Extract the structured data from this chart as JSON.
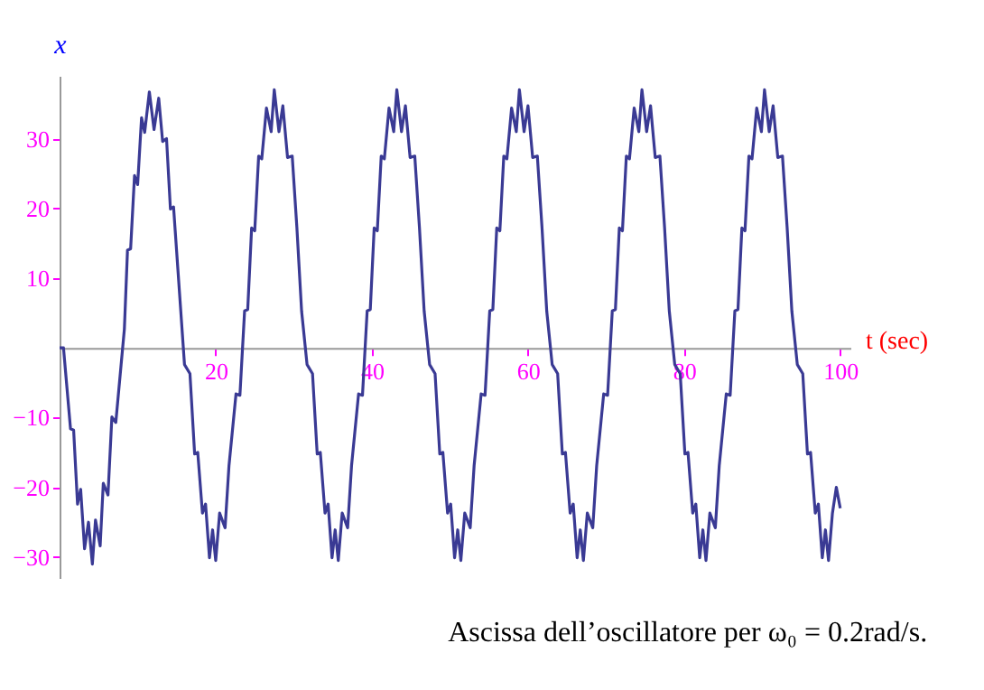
{
  "chart_data": {
    "type": "line",
    "xlabel": "t (sec)",
    "ylabel": "x",
    "annotations": [
      "Ascissa dell’oscillatore per ω₀ = 0.2rad/s."
    ],
    "xlim": [
      0,
      101.3
    ],
    "xticks": [
      20,
      40,
      60,
      80,
      100
    ],
    "ylim": [
      -33,
      39
    ],
    "yticks": [
      -30,
      -20,
      -10,
      10,
      20,
      30
    ],
    "grid": false,
    "marker": "none",
    "line_style": "solid",
    "series": [
      {
        "color": "#3a3a94",
        "x": [
          0,
          0.5,
          1.4,
          1.8,
          2.3,
          2.7,
          3.2,
          3.7,
          4.2,
          4.6,
          5.2,
          5.6,
          6.2,
          6.7,
          7.2,
          8.3,
          8.7,
          9.1,
          9.6,
          10,
          10.5,
          10.9,
          11.5,
          12.1,
          12.7,
          13.2,
          13.7,
          14.2,
          14.6,
          16.0,
          16.7,
          17.3,
          17.7,
          18.3,
          18.7,
          19.2,
          19.6,
          20.0,
          20.5,
          21.2,
          21.7,
          22.6,
          23.1,
          23.7,
          24.1,
          24.6,
          25.0,
          25.5,
          25.9,
          26.5,
          27.1,
          27.5,
          28.1,
          28.6,
          29.2,
          29.8,
          30.4,
          31.0,
          31.7,
          32.4,
          33.0,
          33.4,
          34.0,
          34.4,
          34.9,
          35.3,
          35.7,
          36.2,
          36.9,
          37.4,
          38.3,
          38.8,
          39.4,
          39.8,
          40.3,
          40.7,
          41.2,
          41.6,
          42.2,
          42.8,
          43.2,
          43.8,
          44.3,
          44.9,
          45.5,
          46.1,
          46.7,
          47.4,
          48.1,
          48.7,
          49.1,
          49.7,
          50.1,
          50.6,
          51.0,
          51.4,
          51.9,
          52.6,
          53.1,
          54.0,
          54.5,
          55.1,
          55.5,
          56.0,
          56.4,
          56.9,
          57.3,
          57.9,
          58.5,
          58.9,
          59.5,
          60.0,
          60.6,
          61.2,
          61.8,
          62.4,
          63.1,
          63.8,
          64.4,
          64.8,
          65.4,
          65.8,
          66.3,
          66.7,
          67.1,
          67.6,
          68.3,
          68.8,
          69.7,
          70.2,
          70.8,
          71.2,
          71.7,
          72.1,
          72.6,
          73.0,
          73.6,
          74.2,
          74.6,
          75.2,
          75.7,
          76.3,
          76.9,
          77.5,
          78.1,
          78.8,
          79.5,
          80.1,
          80.5,
          81.1,
          81.5,
          82.0,
          82.4,
          82.8,
          83.3,
          84.0,
          84.5,
          85.4,
          85.9,
          86.5,
          86.9,
          87.4,
          87.8,
          88.3,
          88.7,
          89.3,
          89.9,
          90.3,
          90.9,
          91.4,
          92.0,
          92.6,
          93.2,
          93.8,
          94.5,
          95.2,
          95.8,
          96.2,
          96.8,
          97.2,
          97.7,
          98.1,
          98.5,
          99.0,
          99.5,
          100
        ],
        "values": [
          0,
          0,
          -11.6,
          -11.8,
          -22.4,
          -20.3,
          -28.8,
          -25,
          -31,
          -24.7,
          -28.4,
          -19.4,
          -21.1,
          -9.9,
          -10.7,
          2.7,
          14,
          14.2,
          24.7,
          23.4,
          33,
          30.9,
          36.7,
          31.3,
          35.8,
          29.6,
          30,
          19.9,
          20.2,
          -2.4,
          -3.7,
          -15.2,
          -15,
          -23.7,
          -22.4,
          -30.1,
          -26.1,
          -30.5,
          -23.7,
          -25.8,
          -16.9,
          -6.6,
          -6.8,
          5.3,
          5.5,
          17.2,
          16.8,
          27.5,
          27.1,
          34.4,
          31,
          37,
          31,
          34.7,
          27.3,
          27.5,
          17.2,
          5.3,
          -2.4,
          -3.7,
          -15.2,
          -15,
          -23.7,
          -22.4,
          -30.1,
          -26.1,
          -30.5,
          -23.7,
          -25.8,
          -16.9,
          -6.6,
          -6.8,
          5.3,
          5.5,
          17.2,
          16.8,
          27.5,
          27.1,
          34.4,
          31,
          37,
          31,
          34.7,
          27.3,
          27.5,
          17.2,
          5.3,
          -2.4,
          -3.7,
          -15.2,
          -15,
          -23.7,
          -22.4,
          -30.1,
          -26.1,
          -30.5,
          -23.7,
          -25.8,
          -16.9,
          -6.6,
          -6.8,
          5.3,
          5.5,
          17.2,
          16.8,
          27.5,
          27.1,
          34.4,
          31,
          37,
          31,
          34.7,
          27.3,
          27.5,
          17.2,
          5.3,
          -2.4,
          -3.7,
          -15.2,
          -15,
          -23.7,
          -22.4,
          -30.1,
          -26.1,
          -30.5,
          -23.7,
          -25.8,
          -16.9,
          -6.6,
          -6.8,
          5.3,
          5.5,
          17.2,
          16.8,
          27.5,
          27.1,
          34.4,
          31,
          37,
          31,
          34.7,
          27.3,
          27.5,
          17.2,
          5.3,
          -2.4,
          -3.7,
          -15.2,
          -15,
          -23.7,
          -22.4,
          -30.1,
          -26.1,
          -30.5,
          -23.7,
          -25.8,
          -16.9,
          -6.6,
          -6.8,
          5.3,
          5.5,
          17.2,
          16.8,
          27.5,
          27.1,
          34.4,
          31,
          37,
          31,
          34.7,
          27.3,
          27.5,
          17.2,
          5.3,
          -2.4,
          -3.7,
          -15.2,
          -15,
          -23.7,
          -22.4,
          -30.1,
          -26.1,
          -30.5,
          -23.7,
          -20,
          -23
        ]
      }
    ]
  }
}
